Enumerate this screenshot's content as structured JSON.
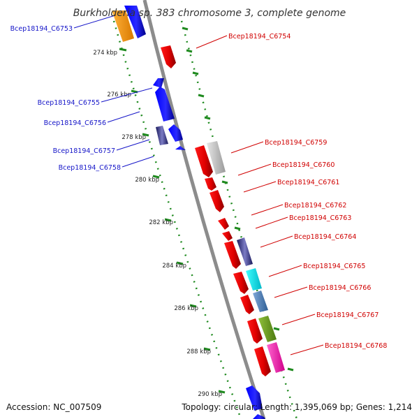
{
  "title": "Burkholderia sp. 383 chromosome 3, complete genome",
  "accession": "Accession: NC_007509",
  "summary": "Topology: circular; Length: 1,395,069 bp; Genes: 1,214",
  "colors": {
    "backbone": "#8c8c8c",
    "tick_green": "#1f8a1f",
    "label_blue": "#1515c8",
    "label_red": "#d00000"
  },
  "scale_ticks": [
    "274 kbp",
    "276 kbp",
    "278 kbp",
    "280 kbp",
    "282 kbp",
    "284 kbp",
    "286 kbp",
    "288 kbp",
    "290 kbp"
  ],
  "genes_left": [
    {
      "id": "Bcep18194_C6753"
    },
    {
      "id": "Bcep18194_C6755"
    },
    {
      "id": "Bcep18194_C6756"
    },
    {
      "id": "Bcep18194_C6757"
    },
    {
      "id": "Bcep18194_C6758"
    }
  ],
  "genes_right": [
    {
      "id": "Bcep18194_C6754"
    },
    {
      "id": "Bcep18194_C6759"
    },
    {
      "id": "Bcep18194_C6760"
    },
    {
      "id": "Bcep18194_C6761"
    },
    {
      "id": "Bcep18194_C6762"
    },
    {
      "id": "Bcep18194_C6763"
    },
    {
      "id": "Bcep18194_C6764"
    },
    {
      "id": "Bcep18194_C6765"
    },
    {
      "id": "Bcep18194_C6766"
    },
    {
      "id": "Bcep18194_C6767"
    },
    {
      "id": "Bcep18194_C6768"
    }
  ]
}
